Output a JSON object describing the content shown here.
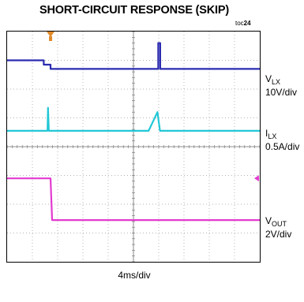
{
  "title": "SHORT-CIRCUIT RESPONSE (SKIP)",
  "figure_ref": {
    "prefix": "toc",
    "number": "24"
  },
  "timebase": "4ms/div",
  "channels": [
    {
      "id": "vlx",
      "symbol": "V",
      "sub": "LX",
      "scale": "10V/div",
      "color": "#2b2bb0"
    },
    {
      "id": "ilx",
      "symbol": "I",
      "sub": "LX",
      "scale": "0.5A/div",
      "color": "#22c7d6"
    },
    {
      "id": "vout",
      "symbol": "V",
      "sub": "OUT",
      "scale": "2V/div",
      "color": "#e23ad0"
    }
  ],
  "trigger_color": "#e08a2a",
  "chart_data": {
    "type": "line",
    "title": "SHORT-CIRCUIT RESPONSE (SKIP)",
    "xlabel": "4ms/div",
    "x_unit": "div",
    "xlim": [
      0,
      10
    ],
    "ylim": [
      0,
      8
    ],
    "grid": true,
    "series": [
      {
        "name": "VLX",
        "scale": "10V/div",
        "x": [
          0,
          1.45,
          1.45,
          1.72,
          1.72,
          5.98,
          5.98,
          6.06,
          6.06,
          10
        ],
        "y": [
          7.0,
          7.0,
          6.85,
          6.85,
          6.7,
          6.7,
          7.6,
          7.6,
          6.7,
          6.7
        ]
      },
      {
        "name": "ILX",
        "scale": "0.5A/div",
        "x": [
          0,
          1.6,
          1.62,
          1.65,
          1.68,
          5.6,
          5.95,
          6.05,
          6.1,
          10
        ],
        "y": [
          4.55,
          4.55,
          5.35,
          4.55,
          4.55,
          4.55,
          5.2,
          4.55,
          4.55,
          4.55
        ]
      },
      {
        "name": "VOUT",
        "scale": "2V/div",
        "x": [
          0,
          1.72,
          1.78,
          10
        ],
        "y": [
          2.9,
          2.9,
          1.45,
          1.45
        ]
      }
    ]
  }
}
